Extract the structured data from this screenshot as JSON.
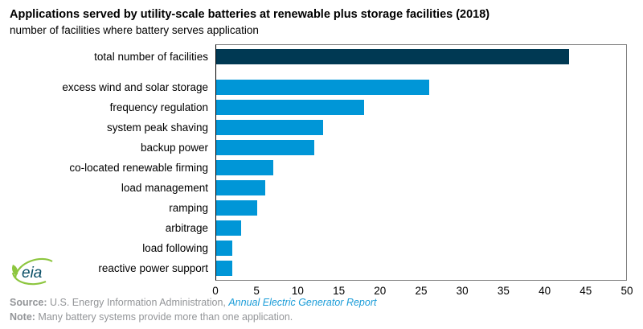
{
  "title": "Applications served by utility-scale batteries at renewable plus storage facilities (2018)",
  "subtitle": "number of facilities where battery serves application",
  "chart_data": {
    "type": "bar",
    "orientation": "horizontal",
    "title": "Applications served by utility-scale batteries at renewable plus storage facilities (2018)",
    "ylabel": "number of facilities where battery serves application",
    "categories": [
      "total number of facilities",
      "excess wind and solar storage",
      "frequency regulation",
      "system peak shaving",
      "backup power",
      "co-located renewable firming",
      "load management",
      "ramping",
      "arbitrage",
      "load following",
      "reactive power support"
    ],
    "values": [
      43,
      26,
      18,
      13,
      12,
      7,
      6,
      5,
      3,
      2,
      2
    ],
    "xlim": [
      0,
      50
    ],
    "xticks": [
      0,
      5,
      10,
      15,
      20,
      25,
      30,
      35,
      40,
      45,
      50
    ],
    "highlight_index": 0,
    "colors": {
      "highlight": "#003953",
      "default": "#0096d7"
    },
    "legend": "none",
    "grid": "off"
  },
  "footer": {
    "source_label": "Source:",
    "source_text": " U.S. Energy Information Administration, ",
    "source_link": "Annual Electric Generator Report",
    "note_label": "Note:",
    "note_text": " Many battery systems provide more than one application."
  },
  "logo": {
    "text": "eia"
  }
}
